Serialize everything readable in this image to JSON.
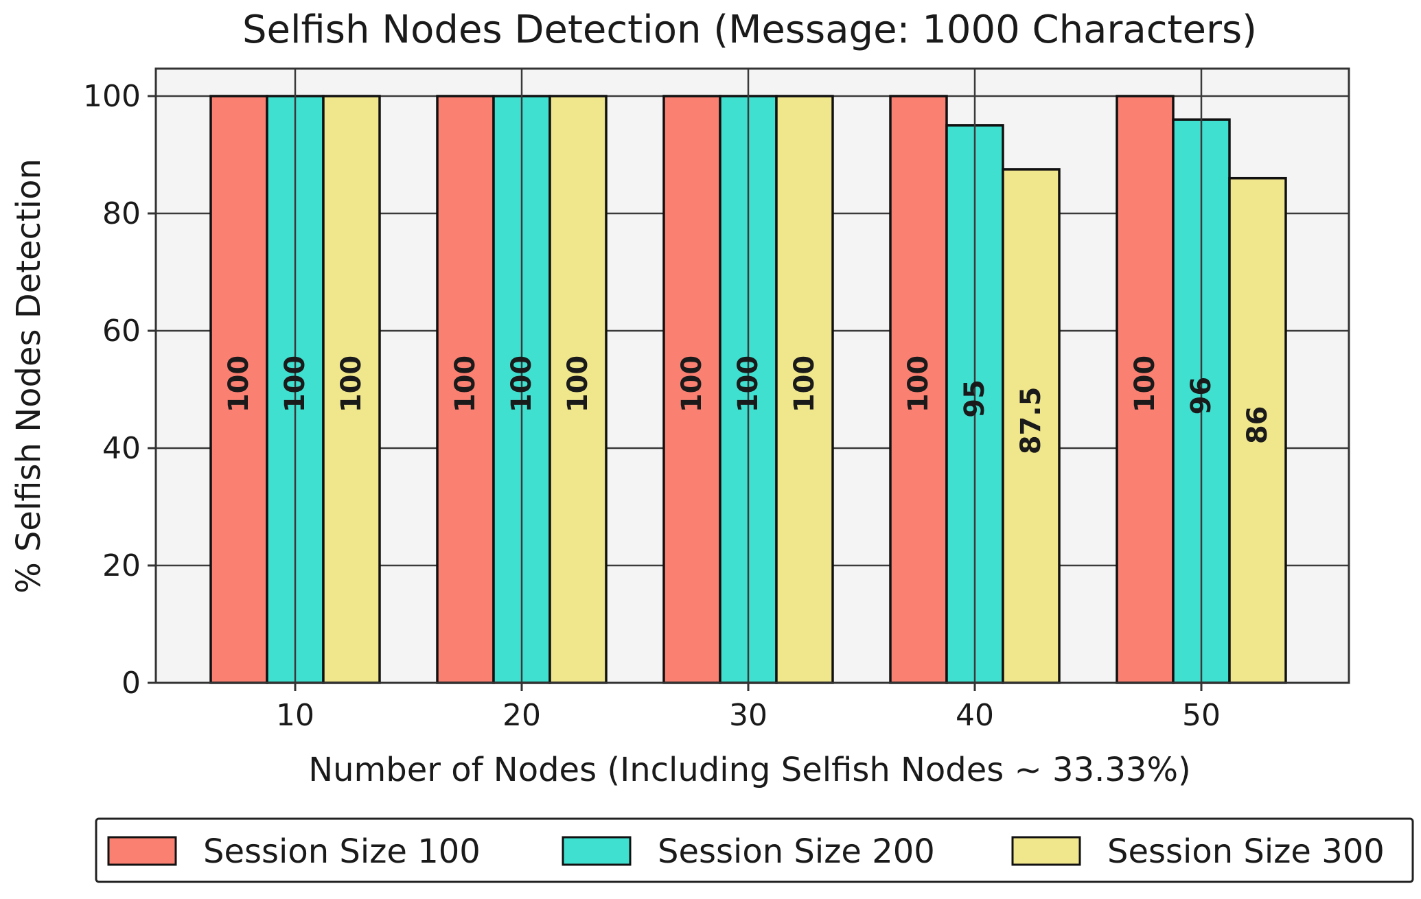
{
  "chart_data": {
    "type": "bar",
    "title": "Selfish Nodes Detection (Message: 1000 Characters)",
    "xlabel": "Number of Nodes (Including Selfish Nodes ~ 33.33%)",
    "ylabel": "% Selfish Nodes Detection",
    "categories": [
      "10",
      "20",
      "30",
      "40",
      "50"
    ],
    "ylim": [
      0,
      100
    ],
    "yticks": [
      "0",
      "20",
      "40",
      "60",
      "80",
      "100"
    ],
    "grid": true,
    "legend_position": "bottom",
    "series": [
      {
        "name": "Session Size 100",
        "color": "#fa8072",
        "values": [
          100,
          100,
          100,
          100,
          100
        ],
        "labels": [
          "100",
          "100",
          "100",
          "100",
          "100"
        ]
      },
      {
        "name": "Session Size 200",
        "color": "#40e0d0",
        "values": [
          100,
          100,
          100,
          95,
          96
        ],
        "labels": [
          "100",
          "100",
          "100",
          "95",
          "96"
        ]
      },
      {
        "name": "Session Size 300",
        "color": "#f0e68c",
        "values": [
          100,
          100,
          100,
          87.5,
          86
        ],
        "labels": [
          "100",
          "100",
          "100",
          "87.5",
          "86"
        ]
      }
    ]
  }
}
